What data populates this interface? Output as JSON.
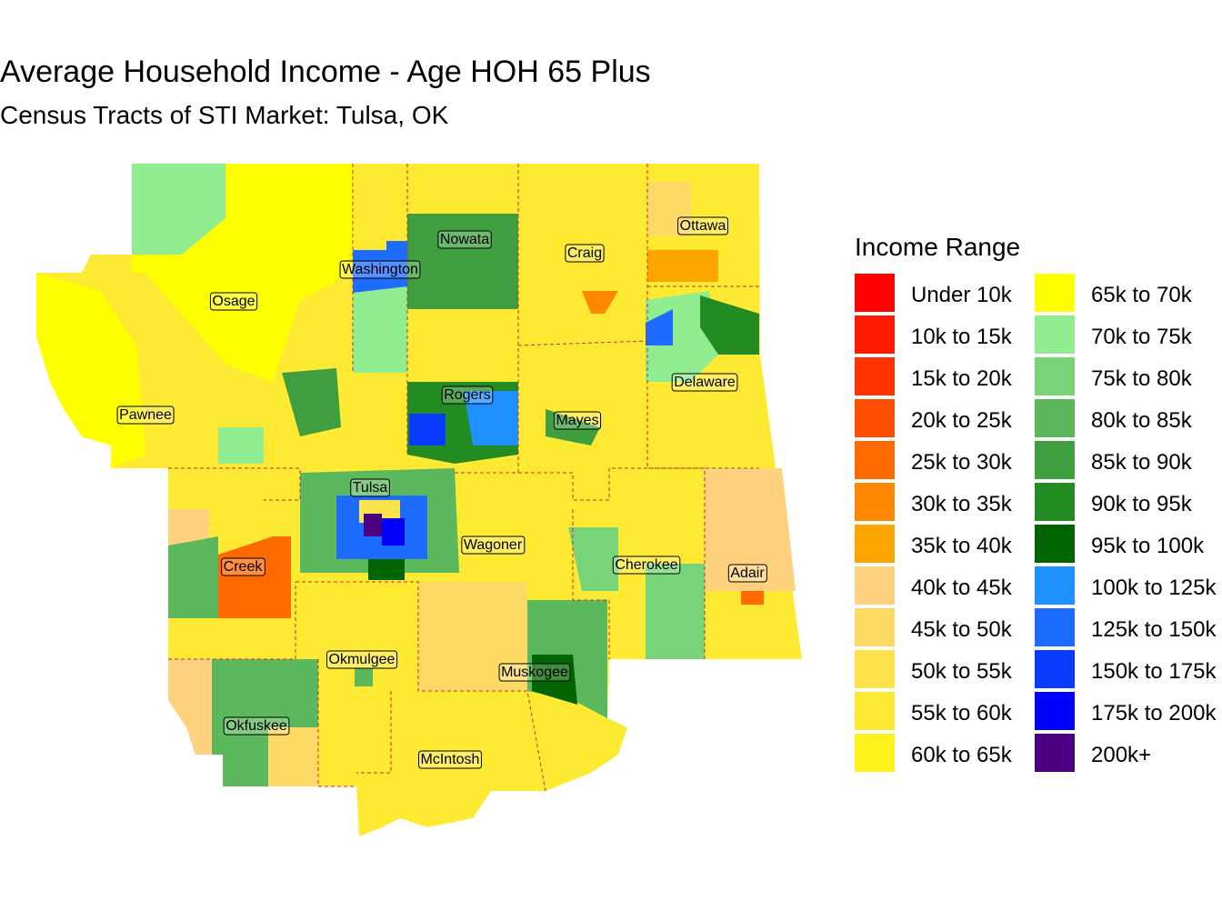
{
  "title": "Average Household Income - Age HOH 65 Plus",
  "subtitle": "Census Tracts of STI Market: Tulsa, OK",
  "legend": {
    "title": "Income Range",
    "items": [
      {
        "label": "Under 10k",
        "color": "#ff0000"
      },
      {
        "label": "10k to 15k",
        "color": "#ff1a00"
      },
      {
        "label": "15k to 20k",
        "color": "#ff3300"
      },
      {
        "label": "20k to 25k",
        "color": "#ff4d00"
      },
      {
        "label": "25k to 30k",
        "color": "#ff6a00"
      },
      {
        "label": "30k to 35k",
        "color": "#ff8800"
      },
      {
        "label": "35k to 40k",
        "color": "#ffa500"
      },
      {
        "label": "40k to 45k",
        "color": "#ffd27f"
      },
      {
        "label": "45k to 50k",
        "color": "#ffd966"
      },
      {
        "label": "50k to 55k",
        "color": "#ffe34d"
      },
      {
        "label": "55k to 60k",
        "color": "#ffea33"
      },
      {
        "label": "60k to 65k",
        "color": "#fff21a"
      },
      {
        "label": "65k to 70k",
        "color": "#ffff00"
      },
      {
        "label": "70k to 75k",
        "color": "#90ee90"
      },
      {
        "label": "75k to 80k",
        "color": "#78d478"
      },
      {
        "label": "80k to 85k",
        "color": "#5cb85c"
      },
      {
        "label": "85k to 90k",
        "color": "#3f9f3f"
      },
      {
        "label": "90k to 95k",
        "color": "#228b22"
      },
      {
        "label": "95k to 100k",
        "color": "#006400"
      },
      {
        "label": "100k to 125k",
        "color": "#1e90ff"
      },
      {
        "label": "125k to 150k",
        "color": "#1e6cff"
      },
      {
        "label": "150k to 175k",
        "color": "#0a3cff"
      },
      {
        "label": "175k to 200k",
        "color": "#0000ff"
      },
      {
        "label": "200k+",
        "color": "#4b0082"
      }
    ]
  },
  "counties": [
    "Osage",
    "Pawnee",
    "Washington",
    "Nowata",
    "Craig",
    "Ottawa",
    "Rogers",
    "Mayes",
    "Delaware",
    "Tulsa",
    "Wagoner",
    "Creek",
    "Cherokee",
    "Adair",
    "Okmulgee",
    "Muskogee",
    "Okfuskee",
    "McIntosh"
  ]
}
